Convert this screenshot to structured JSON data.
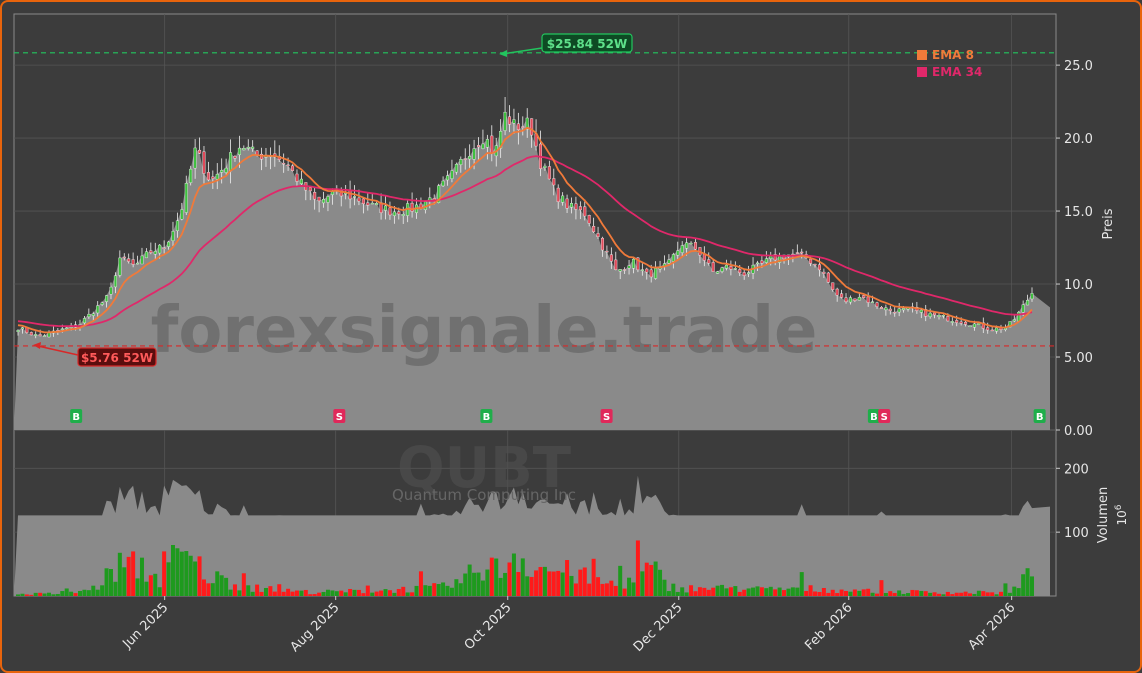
{
  "chart_data": {
    "type": "candlestick",
    "ticker": "QUBT",
    "company": "Quantum Computing Inc",
    "watermark": "forexsignale.trade",
    "y_label": "Preis",
    "volume_label": "Volumen",
    "volume_exponent_label": "10",
    "volume_exponent_power": "6",
    "price_ylim": [
      0,
      28.5
    ],
    "volume_ylim": [
      0,
      260
    ],
    "price_ticks": [
      "0.00",
      "5.00",
      "10.0",
      "15.0",
      "20.0",
      "25.0"
    ],
    "volume_ticks": [
      "100",
      "200"
    ],
    "x_tick_labels": [
      "Jun 2025",
      "Aug 2025",
      "Oct 2025",
      "Dec 2025",
      "Feb 2026",
      "Apr 2026"
    ],
    "legend": [
      {
        "name": "EMA 8",
        "color": "#f07a3a"
      },
      {
        "name": "EMA 34",
        "color": "#e0286a"
      }
    ],
    "high_52w": {
      "value": 25.84,
      "label": "$25.84 52W",
      "color": "#22c55e"
    },
    "low_52w": {
      "value": 5.76,
      "label": "$5.76 52W",
      "color": "#d82828"
    },
    "signals": [
      {
        "type": "B",
        "pos": 0.06
      },
      {
        "type": "S",
        "pos": 0.314
      },
      {
        "type": "B",
        "pos": 0.456
      },
      {
        "type": "S",
        "pos": 0.572
      },
      {
        "type": "B",
        "pos": 0.83
      },
      {
        "type": "S",
        "pos": 0.84
      },
      {
        "type": "B",
        "pos": 0.99
      }
    ],
    "price_anchors": [
      [
        0.0,
        7.0
      ],
      [
        0.02,
        6.4
      ],
      [
        0.04,
        6.8
      ],
      [
        0.06,
        7.2
      ],
      [
        0.075,
        8.2
      ],
      [
        0.09,
        9.2
      ],
      [
        0.1,
        11.8
      ],
      [
        0.115,
        11.2
      ],
      [
        0.13,
        12.2
      ],
      [
        0.145,
        12.6
      ],
      [
        0.16,
        14.8
      ],
      [
        0.175,
        19.2
      ],
      [
        0.19,
        17.0
      ],
      [
        0.205,
        18.2
      ],
      [
        0.22,
        19.6
      ],
      [
        0.235,
        18.8
      ],
      [
        0.25,
        19.0
      ],
      [
        0.265,
        18.2
      ],
      [
        0.28,
        16.8
      ],
      [
        0.295,
        15.5
      ],
      [
        0.31,
        16.2
      ],
      [
        0.33,
        16.0
      ],
      [
        0.35,
        15.3
      ],
      [
        0.37,
        15.0
      ],
      [
        0.39,
        15.2
      ],
      [
        0.41,
        16.0
      ],
      [
        0.43,
        17.6
      ],
      [
        0.445,
        19.2
      ],
      [
        0.46,
        20.2
      ],
      [
        0.47,
        18.8
      ],
      [
        0.48,
        21.6
      ],
      [
        0.49,
        20.8
      ],
      [
        0.505,
        21.0
      ],
      [
        0.515,
        18.4
      ],
      [
        0.53,
        16.2
      ],
      [
        0.545,
        15.2
      ],
      [
        0.56,
        14.8
      ],
      [
        0.575,
        12.8
      ],
      [
        0.59,
        10.8
      ],
      [
        0.605,
        11.6
      ],
      [
        0.62,
        10.6
      ],
      [
        0.64,
        11.2
      ],
      [
        0.655,
        12.8
      ],
      [
        0.67,
        12.4
      ],
      [
        0.685,
        10.8
      ],
      [
        0.7,
        11.2
      ],
      [
        0.715,
        10.7
      ],
      [
        0.73,
        11.2
      ],
      [
        0.745,
        11.8
      ],
      [
        0.76,
        12.0
      ],
      [
        0.775,
        11.9
      ],
      [
        0.79,
        11.2
      ],
      [
        0.805,
        9.4
      ],
      [
        0.815,
        8.8
      ],
      [
        0.83,
        9.2
      ],
      [
        0.845,
        8.6
      ],
      [
        0.86,
        8.2
      ],
      [
        0.88,
        8.2
      ],
      [
        0.9,
        7.9
      ],
      [
        0.92,
        7.6
      ],
      [
        0.94,
        7.3
      ],
      [
        0.96,
        6.9
      ],
      [
        0.975,
        7.0
      ],
      [
        0.985,
        7.8
      ],
      [
        1.0,
        9.4
      ]
    ],
    "volume_anchors": [
      [
        0.0,
        3
      ],
      [
        0.05,
        4
      ],
      [
        0.075,
        12
      ],
      [
        0.1,
        48
      ],
      [
        0.12,
        46
      ],
      [
        0.14,
        25
      ],
      [
        0.155,
        60
      ],
      [
        0.17,
        55
      ],
      [
        0.19,
        30
      ],
      [
        0.21,
        22
      ],
      [
        0.235,
        12
      ],
      [
        0.26,
        9
      ],
      [
        0.29,
        6
      ],
      [
        0.32,
        7
      ],
      [
        0.36,
        9
      ],
      [
        0.4,
        12
      ],
      [
        0.42,
        14
      ],
      [
        0.44,
        25
      ],
      [
        0.46,
        52
      ],
      [
        0.475,
        38
      ],
      [
        0.49,
        68
      ],
      [
        0.51,
        45
      ],
      [
        0.53,
        40
      ],
      [
        0.55,
        35
      ],
      [
        0.57,
        22
      ],
      [
        0.59,
        18
      ],
      [
        0.61,
        28
      ],
      [
        0.625,
        45
      ],
      [
        0.64,
        15
      ],
      [
        0.66,
        12
      ],
      [
        0.7,
        12
      ],
      [
        0.74,
        10
      ],
      [
        0.77,
        12
      ],
      [
        0.8,
        10
      ],
      [
        0.83,
        8
      ],
      [
        0.86,
        7
      ],
      [
        0.9,
        6
      ],
      [
        0.94,
        5
      ],
      [
        0.97,
        5
      ],
      [
        0.985,
        12
      ],
      [
        1.0,
        38
      ]
    ]
  }
}
